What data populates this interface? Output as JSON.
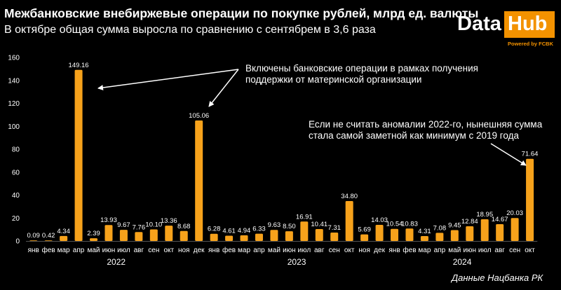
{
  "header": {
    "title": "Межбанковские внебиржевые операции по покупке рублей, млрд ед. валюты",
    "subtitle": "В октябре общая сумма выросла по сравнению с сентябрем в 3,6 раза"
  },
  "logo": {
    "part1": "Data",
    "part2": "Hub",
    "powered": "Powered by FCBK"
  },
  "source": "Данные Нацбанка РК",
  "annotations": {
    "first_line1": "Включены банковские операции в рамках получения",
    "first_line2": "поддержки от материнской организации",
    "second_line1": "Если не считать аномалии 2022-го, нынешняя сумма",
    "second_line2": "стала самой заметной как минимум с 2019 года"
  },
  "colors": {
    "bar": "#f7a21b",
    "accent": "#f39200",
    "background": "#000000",
    "grid": "#333333"
  },
  "chart_data": {
    "type": "bar",
    "categories": [
      "янв",
      "фев",
      "мар",
      "апр",
      "май",
      "июн",
      "июл",
      "авг",
      "сен",
      "окт",
      "ноя",
      "дек",
      "янв",
      "фев",
      "мар",
      "апр",
      "май",
      "июн",
      "июл",
      "авг",
      "сен",
      "окт",
      "ноя",
      "дек",
      "янв",
      "фев",
      "мар",
      "апр",
      "май",
      "июн",
      "июл",
      "авг",
      "сен",
      "окт"
    ],
    "years": [
      {
        "label": "2022",
        "start": 0,
        "end": 11
      },
      {
        "label": "2023",
        "start": 12,
        "end": 23
      },
      {
        "label": "2024",
        "start": 24,
        "end": 33
      }
    ],
    "values": [
      0.09,
      0.42,
      4.34,
      149.16,
      2.39,
      13.93,
      9.67,
      7.76,
      10.1,
      13.36,
      8.68,
      105.06,
      6.28,
      4.61,
      4.94,
      6.33,
      9.63,
      8.5,
      16.91,
      10.41,
      7.31,
      34.8,
      5.69,
      14.03,
      10.54,
      10.83,
      4.31,
      7.08,
      9.45,
      12.84,
      18.95,
      14.67,
      20.03,
      71.64
    ],
    "labels": [
      "0.09",
      "0.42",
      "4.34",
      "149.16",
      "2.39",
      "13.93",
      "9.67",
      "7.76",
      "10.10",
      "13.36",
      "8.68",
      "105.06",
      "6.28",
      "4.61",
      "4.94",
      "6.33",
      "9.63",
      "8.50",
      "16.91",
      "10.41",
      "7.31",
      "34.80",
      "5.69",
      "14.03",
      "10.54",
      "10.83",
      "4.31",
      "7.08",
      "9.45",
      "12.84",
      "18.95",
      "14.67",
      "20.03",
      "71.64"
    ],
    "yticks": [
      0,
      20,
      40,
      60,
      80,
      100,
      120,
      140,
      160
    ],
    "ylim": [
      0,
      160
    ],
    "grid": false
  }
}
